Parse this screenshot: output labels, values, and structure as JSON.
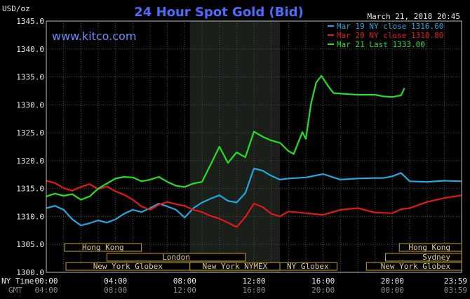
{
  "header": {
    "units": "USD/oz",
    "title": "24 Hour Spot Gold (Bid)",
    "date": "March 21, 2018 20:45",
    "site": "www.kitco.com"
  },
  "colors": {
    "background": "#000000",
    "plot_background": "#000000",
    "nymex_band": "#1a1f1a",
    "grid": "#4a4a4a",
    "frame": "#bdbdbd",
    "title": "#4a6cff",
    "site": "#6f8cff",
    "axis_text": "#e8e8e8",
    "sub_text": "#8a8a8a",
    "session_border": "#c9a227",
    "session_text": "#e0cf8a",
    "series": [
      "#20a8e0",
      "#e31818",
      "#22e022"
    ]
  },
  "chart_data": {
    "type": "line",
    "title": "24 Hour Spot Gold (Bid)",
    "ylabel": "USD/oz",
    "xlabel": "",
    "ylim": [
      1300,
      1345
    ],
    "y_ticks": [
      1300,
      1305,
      1310,
      1315,
      1320,
      1325,
      1330,
      1335,
      1340,
      1345
    ],
    "y_tick_labels": [
      "1300.0",
      "1305.0",
      "1310.0",
      "1315.0",
      "1320.0",
      "1325.0",
      "1330.0",
      "1335.0",
      "1340.0",
      "1345.0"
    ],
    "xlim": [
      0,
      24
    ],
    "x_ticks": [
      0,
      4,
      8,
      12,
      16,
      20,
      23.983
    ],
    "x_tick_labels_ny": [
      "00:00",
      "04:00",
      "08:00",
      "12:00",
      "16:00",
      "20:00",
      "23:59"
    ],
    "x_tick_labels_gmt": [
      "04:00",
      "08:00",
      "12:00",
      "16:00",
      "20:00",
      "00:00",
      "03:59"
    ],
    "row_labels": {
      "ny": "NY Time",
      "gmt": "GMT"
    },
    "grid": true,
    "shaded_region": {
      "label": "New York NYMEX",
      "x": [
        8.3,
        13.5
      ]
    },
    "legend": {
      "position": "top-right",
      "entries": [
        "Mar 19 NY close 1316.60",
        "Mar 20 NY close 1310.80",
        "Mar 21 Last 1333.00"
      ]
    },
    "series": [
      {
        "name": "Mar 19 NY close 1316.60",
        "color": "#20a8e0",
        "x": [
          0,
          0.5,
          1,
          1.5,
          2,
          2.5,
          3,
          3.5,
          4,
          4.5,
          5,
          5.5,
          6,
          6.5,
          7,
          7.5,
          8,
          8.5,
          9,
          9.5,
          10,
          10.5,
          11,
          11.5,
          12,
          12.5,
          13,
          13.5,
          14,
          15,
          16,
          17,
          18,
          19,
          19.5,
          20,
          20.5,
          21,
          22,
          23,
          24
        ],
        "y": [
          1311.5,
          1311.9,
          1311.2,
          1309.5,
          1308.4,
          1308.8,
          1309.3,
          1308.9,
          1309.5,
          1310.5,
          1311.2,
          1310.8,
          1311.5,
          1312.3,
          1311.8,
          1311.2,
          1309.8,
          1311.5,
          1312.5,
          1313.2,
          1313.8,
          1312.8,
          1312.5,
          1314.2,
          1318.6,
          1318.2,
          1317.3,
          1316.6,
          1316.8,
          1317.0,
          1317.6,
          1316.6,
          1316.8,
          1316.9,
          1316.9,
          1317.2,
          1317.8,
          1316.3,
          1316.2,
          1316.4,
          1316.3
        ]
      },
      {
        "name": "Mar 20 NY close 1310.80",
        "color": "#e31818",
        "x": [
          0,
          0.5,
          1,
          1.5,
          2,
          2.5,
          3,
          3.5,
          4,
          4.5,
          5,
          5.5,
          6,
          6.5,
          7,
          7.5,
          8,
          8.5,
          9,
          9.5,
          10,
          10.5,
          11,
          11.5,
          12,
          12.5,
          13,
          13.5,
          14,
          15,
          16,
          17,
          18,
          19,
          20,
          20.5,
          21,
          22,
          23,
          24
        ],
        "y": [
          1316.4,
          1316.0,
          1315.1,
          1314.6,
          1315.3,
          1315.8,
          1314.9,
          1315.4,
          1314.5,
          1313.9,
          1313.0,
          1311.8,
          1311.2,
          1312.1,
          1312.6,
          1312.2,
          1311.9,
          1311.2,
          1310.8,
          1310.1,
          1309.6,
          1308.9,
          1308.1,
          1309.9,
          1312.3,
          1311.7,
          1310.5,
          1310.0,
          1310.9,
          1310.6,
          1310.3,
          1311.2,
          1311.5,
          1310.7,
          1310.6,
          1311.3,
          1311.5,
          1312.6,
          1313.3,
          1313.8
        ]
      },
      {
        "name": "Mar 21 Last 1333.00",
        "color": "#22e022",
        "x": [
          0,
          0.5,
          1,
          1.5,
          2,
          2.5,
          3,
          3.5,
          4,
          4.5,
          5,
          5.5,
          6,
          6.5,
          7,
          7.5,
          8,
          8.5,
          9,
          9.5,
          10,
          10.5,
          11,
          11.5,
          12,
          12.5,
          13,
          13.5,
          14,
          14.3,
          14.8,
          15,
          15.3,
          15.6,
          15.9,
          16.3,
          16.6,
          17,
          18,
          19,
          19.5,
          20,
          20.5,
          20.7
        ],
        "y": [
          1313.6,
          1314.1,
          1313.7,
          1314.0,
          1313.0,
          1313.6,
          1315.0,
          1315.9,
          1316.8,
          1317.1,
          1317.0,
          1316.3,
          1316.6,
          1317.1,
          1316.2,
          1315.5,
          1315.3,
          1315.9,
          1316.2,
          1319.3,
          1322.5,
          1319.6,
          1321.5,
          1320.6,
          1325.2,
          1324.3,
          1323.6,
          1323.2,
          1321.7,
          1321.2,
          1325.1,
          1323.9,
          1330.2,
          1334.0,
          1335.2,
          1333.3,
          1332.1,
          1332.0,
          1331.8,
          1331.8,
          1331.5,
          1331.4,
          1331.7,
          1333.0
        ]
      }
    ],
    "sessions": [
      {
        "label": "Hong Kong",
        "row": 1,
        "x": [
          0,
          5.5
        ],
        "label_pos": "center"
      },
      {
        "label": "London",
        "row": 2,
        "x": [
          3.5,
          11.5
        ],
        "label_pos": "center"
      },
      {
        "label": "New York Globex",
        "row": 3,
        "x": [
          0,
          8.3
        ],
        "label_pos": "center"
      },
      {
        "label": "New York NYMEX",
        "row": 3,
        "x": [
          8.3,
          13.5
        ],
        "label_pos": "center"
      },
      {
        "label": "NY Globex",
        "row": 3,
        "x": [
          13.5,
          16.8
        ],
        "label_pos": "left"
      },
      {
        "label": "Sydney",
        "row": 2,
        "x": [
          19.6,
          24
        ],
        "label_pos": "right"
      },
      {
        "label": "Hong Kong",
        "row": 1,
        "x": [
          20.4,
          24
        ],
        "label_pos": "right"
      },
      {
        "label": "New York Globex",
        "row": 3,
        "x": [
          18.5,
          24
        ],
        "label_pos": "right"
      }
    ]
  }
}
